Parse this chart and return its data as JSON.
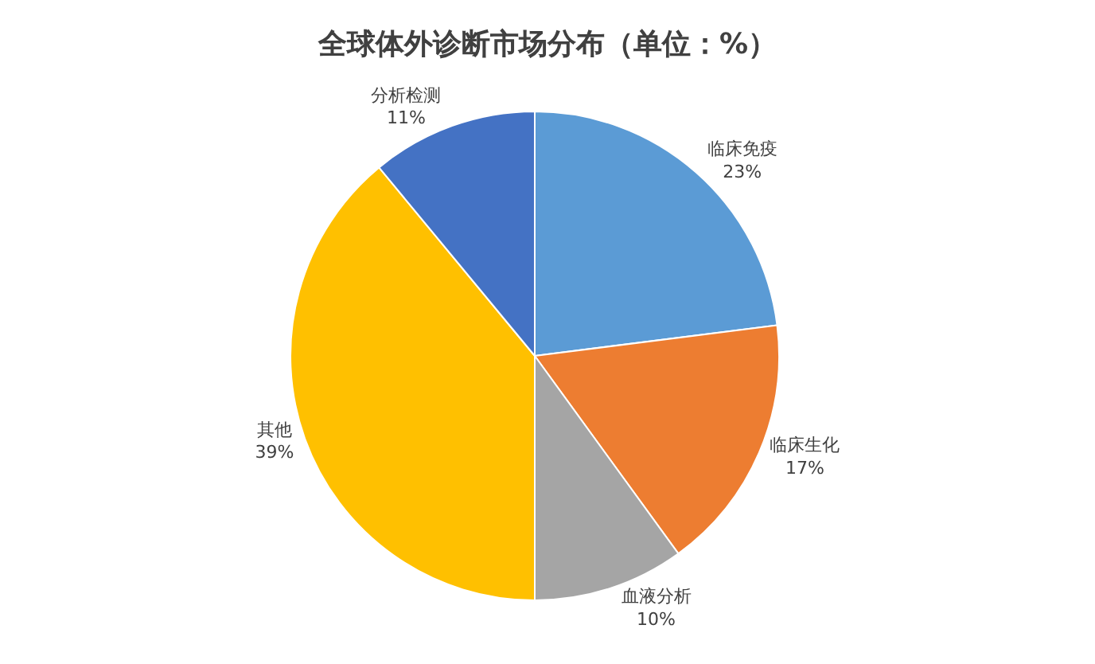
{
  "chart_data": {
    "type": "pie",
    "title": "全球体外诊断市场分布（单位：%）",
    "categories": [
      "临床免疫",
      "临床生化",
      "血液分析",
      "其他",
      "分析检测"
    ],
    "values": [
      23,
      17,
      10,
      39,
      11
    ],
    "value_labels": [
      "23%",
      "17%",
      "10%",
      "39%",
      "11%"
    ],
    "colors": [
      "#5b9bd5",
      "#ed7d31",
      "#a5a5a5",
      "#ffc000",
      "#4472c4"
    ],
    "legend": false
  }
}
